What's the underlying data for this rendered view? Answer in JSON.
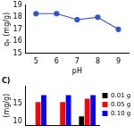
{
  "chart_data": [
    {
      "type": "line",
      "x_label": "pH",
      "y_label": "qₑ (mg/g)",
      "x": [
        5,
        6,
        7,
        8,
        9
      ],
      "values": [
        18.3,
        18.3,
        17.8,
        18.0,
        17.0
      ],
      "color": "#3355cc",
      "marker": "circle",
      "xlim": [
        4.5,
        9.5
      ],
      "xticks": [
        5,
        6,
        7,
        8,
        9
      ],
      "ylim": [
        15,
        19
      ],
      "yticks": [
        15,
        16,
        17,
        18,
        19
      ],
      "grid": false
    },
    {
      "type": "bar",
      "title": "C)",
      "y_label": "(mg/g)",
      "categories": [
        null,
        null,
        null
      ],
      "series": [
        {
          "name": "0.01 g",
          "color": "#000000",
          "values": [
            null,
            null,
            11.5
          ]
        },
        {
          "name": "0.05 g",
          "color": "#ff0000",
          "values": [
            15.5,
            15.5,
            16.5
          ]
        },
        {
          "name": "0.10 g",
          "color": "#0000ff",
          "values": [
            17.5,
            17.5,
            17.5
          ]
        }
      ],
      "ylim": [
        9,
        20
      ],
      "yticks": [
        10,
        15
      ],
      "legend": "right",
      "tick_labels": "y",
      "grid": false
    }
  ]
}
